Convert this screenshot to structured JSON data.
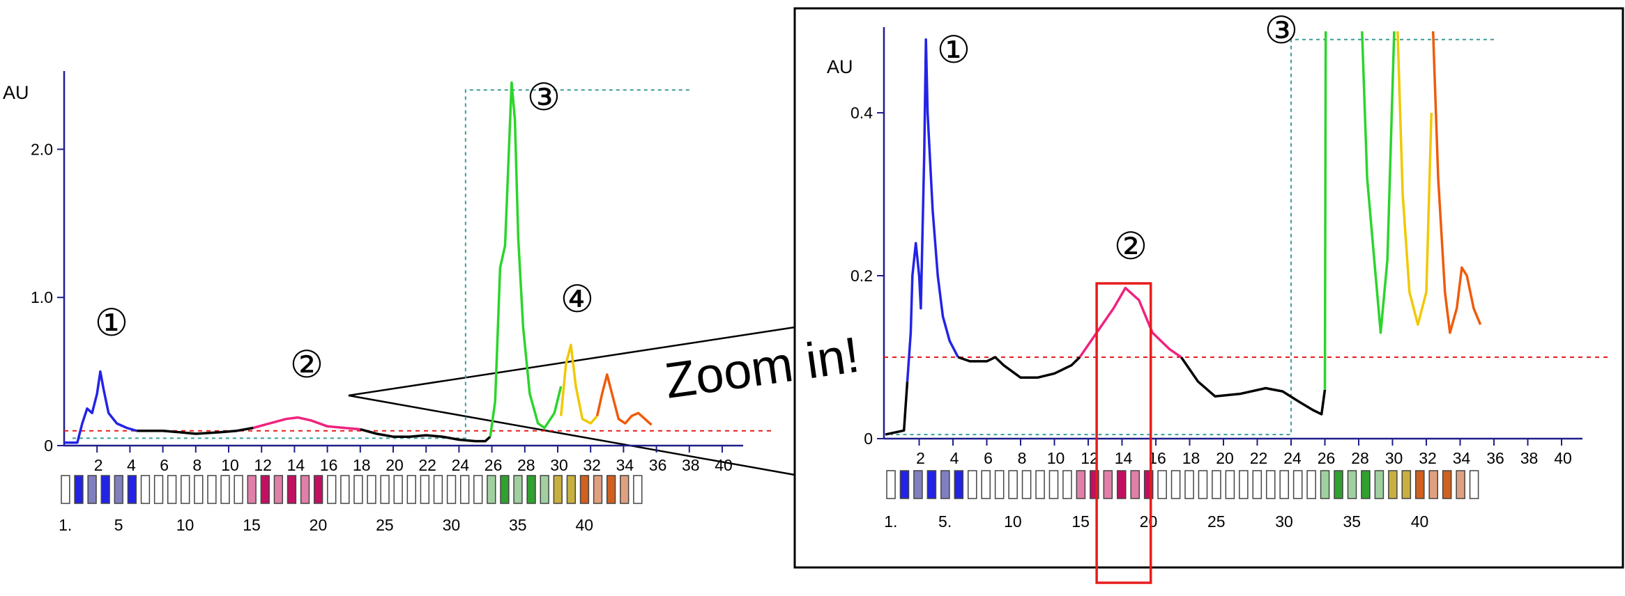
{
  "zoom_label": "Zoom in!",
  "colors": {
    "axis": "#1e1e8c",
    "threshold": "#e81c1c",
    "dotted_box": "#3c9c9c",
    "highlight_box": "#e81c1c",
    "peak1": "#2323e6",
    "peak2": "#f0237e",
    "peak3": "#2bd52b",
    "peak4_yellow": "#f0c800",
    "peak4_orange": "#f05a0a",
    "baseline": "#000000",
    "fraction_box": "#444444"
  },
  "chart_data": [
    {
      "type": "line",
      "panel": "overview",
      "ylabel": "AU",
      "xlabel": "",
      "ylim": [
        0,
        2.5
      ],
      "xlim": [
        0,
        40
      ],
      "y_ticks": [
        {
          "value": 0,
          "label": "0"
        },
        {
          "value": 1.0,
          "label": "1.0"
        },
        {
          "value": 2.0,
          "label": "2.0"
        }
      ],
      "x_ticks": [
        2,
        4,
        6,
        8,
        10,
        12,
        14,
        16,
        18,
        20,
        22,
        24,
        26,
        28,
        30,
        32,
        34,
        36,
        38,
        40
      ],
      "threshold": 0.1,
      "fraction_labels": [
        "1.",
        "5",
        "10",
        "15",
        "20",
        "25",
        "30",
        "35",
        "40"
      ],
      "callouts": [
        "①",
        "②",
        "③",
        "④"
      ],
      "series": [
        {
          "color": "peak1",
          "points": [
            [
              0,
              0.02
            ],
            [
              0.8,
              0.02
            ],
            [
              1.1,
              0.15
            ],
            [
              1.4,
              0.25
            ],
            [
              1.7,
              0.22
            ],
            [
              2.0,
              0.35
            ],
            [
              2.2,
              0.5
            ],
            [
              2.4,
              0.38
            ],
            [
              2.7,
              0.22
            ],
            [
              3.2,
              0.15
            ],
            [
              3.8,
              0.12
            ],
            [
              4.4,
              0.1
            ]
          ]
        },
        {
          "color": "baseline",
          "points": [
            [
              4.4,
              0.1
            ],
            [
              6,
              0.1
            ],
            [
              7,
              0.09
            ],
            [
              8,
              0.08
            ],
            [
              9.5,
              0.09
            ],
            [
              10.5,
              0.1
            ],
            [
              11.5,
              0.12
            ]
          ]
        },
        {
          "color": "peak2",
          "points": [
            [
              11.5,
              0.12
            ],
            [
              12.5,
              0.15
            ],
            [
              13.5,
              0.18
            ],
            [
              14.2,
              0.19
            ],
            [
              15,
              0.17
            ],
            [
              16,
              0.13
            ],
            [
              17,
              0.12
            ],
            [
              18,
              0.11
            ]
          ]
        },
        {
          "color": "baseline",
          "points": [
            [
              18,
              0.11
            ],
            [
              19,
              0.08
            ],
            [
              20,
              0.06
            ],
            [
              21,
              0.06
            ],
            [
              22,
              0.07
            ],
            [
              23,
              0.06
            ],
            [
              24,
              0.04
            ],
            [
              25,
              0.03
            ],
            [
              25.6,
              0.03
            ],
            [
              25.9,
              0.06
            ]
          ]
        },
        {
          "color": "peak3",
          "points": [
            [
              25.9,
              0.06
            ],
            [
              26.2,
              0.3
            ],
            [
              26.5,
              1.2
            ],
            [
              26.8,
              1.35
            ],
            [
              27.0,
              1.9
            ],
            [
              27.2,
              2.45
            ],
            [
              27.4,
              2.2
            ],
            [
              27.6,
              1.4
            ],
            [
              27.9,
              0.8
            ],
            [
              28.3,
              0.35
            ],
            [
              28.8,
              0.15
            ],
            [
              29.2,
              0.12
            ],
            [
              29.8,
              0.22
            ],
            [
              30.2,
              0.4
            ]
          ]
        },
        {
          "color": "peak4_yellow",
          "points": [
            [
              30.2,
              0.2
            ],
            [
              30.5,
              0.55
            ],
            [
              30.8,
              0.68
            ],
            [
              31.1,
              0.4
            ],
            [
              31.5,
              0.18
            ],
            [
              32.0,
              0.15
            ],
            [
              32.4,
              0.2
            ]
          ]
        },
        {
          "color": "peak4_orange",
          "points": [
            [
              32.4,
              0.2
            ],
            [
              32.7,
              0.35
            ],
            [
              33.0,
              0.48
            ],
            [
              33.3,
              0.35
            ],
            [
              33.7,
              0.18
            ],
            [
              34.1,
              0.15
            ],
            [
              34.5,
              0.2
            ],
            [
              34.9,
              0.22
            ],
            [
              35.3,
              0.18
            ],
            [
              35.7,
              0.14
            ]
          ]
        }
      ]
    },
    {
      "type": "line",
      "panel": "zoomed",
      "ylabel": "AU",
      "xlabel": "",
      "ylim": [
        0,
        0.5
      ],
      "xlim": [
        0,
        40
      ],
      "y_ticks": [
        {
          "value": 0,
          "label": "0"
        },
        {
          "value": 0.2,
          "label": "0.2"
        },
        {
          "value": 0.4,
          "label": "0.4"
        }
      ],
      "x_ticks": [
        2,
        4,
        6,
        8,
        10,
        12,
        14,
        16,
        18,
        20,
        22,
        24,
        26,
        28,
        30,
        32,
        34,
        36,
        38,
        40
      ],
      "threshold": 0.1,
      "highlighted_range": [
        12.5,
        15.7
      ],
      "fraction_labels": [
        "1.",
        "5.",
        "10",
        "15",
        "20",
        "25",
        "30",
        "35",
        "40"
      ],
      "callouts": [
        "①",
        "②",
        "③"
      ],
      "series": [
        {
          "color": "baseline",
          "points": [
            [
              0,
              0.005
            ],
            [
              1.1,
              0.01
            ],
            [
              1.3,
              0.07
            ]
          ]
        },
        {
          "color": "peak1",
          "points": [
            [
              1.3,
              0.07
            ],
            [
              1.5,
              0.13
            ],
            [
              1.6,
              0.2
            ],
            [
              1.8,
              0.24
            ],
            [
              2.0,
              0.2
            ],
            [
              2.1,
              0.16
            ],
            [
              2.3,
              0.35
            ],
            [
              2.4,
              0.49
            ],
            [
              2.5,
              0.4
            ],
            [
              2.8,
              0.28
            ],
            [
              3.1,
              0.2
            ],
            [
              3.4,
              0.15
            ],
            [
              3.8,
              0.12
            ],
            [
              4.3,
              0.1
            ]
          ]
        },
        {
          "color": "baseline",
          "points": [
            [
              4.3,
              0.1
            ],
            [
              5,
              0.095
            ],
            [
              6,
              0.095
            ],
            [
              6.5,
              0.1
            ],
            [
              7,
              0.09
            ],
            [
              8,
              0.075
            ],
            [
              9,
              0.075
            ],
            [
              10,
              0.08
            ],
            [
              11,
              0.09
            ],
            [
              11.5,
              0.1
            ]
          ]
        },
        {
          "color": "peak2",
          "points": [
            [
              11.5,
              0.1
            ],
            [
              12.5,
              0.13
            ],
            [
              13.5,
              0.16
            ],
            [
              14.2,
              0.185
            ],
            [
              15,
              0.17
            ],
            [
              15.8,
              0.13
            ],
            [
              16.8,
              0.11
            ],
            [
              17.5,
              0.1
            ]
          ]
        },
        {
          "color": "baseline",
          "points": [
            [
              17.5,
              0.1
            ],
            [
              18.5,
              0.07
            ],
            [
              19.5,
              0.052
            ],
            [
              21,
              0.055
            ],
            [
              22.5,
              0.062
            ],
            [
              23.5,
              0.058
            ],
            [
              24.5,
              0.045
            ],
            [
              25.3,
              0.035
            ],
            [
              25.8,
              0.03
            ],
            [
              26.0,
              0.06
            ]
          ]
        },
        {
          "color": "peak3",
          "points": [
            [
              26.0,
              0.06
            ],
            [
              26.05,
              0.5
            ]
          ]
        },
        {
          "color": "peak3",
          "points": [
            [
              28.2,
              0.5
            ],
            [
              28.5,
              0.32
            ],
            [
              29,
              0.2
            ],
            [
              29.3,
              0.13
            ],
            [
              29.7,
              0.22
            ],
            [
              30.1,
              0.5
            ]
          ]
        },
        {
          "color": "peak4_yellow",
          "points": [
            [
              30.3,
              0.5
            ],
            [
              30.6,
              0.3
            ],
            [
              31,
              0.18
            ],
            [
              31.5,
              0.14
            ],
            [
              32,
              0.18
            ],
            [
              32.3,
              0.4
            ]
          ]
        },
        {
          "color": "peak4_orange",
          "points": [
            [
              32.4,
              0.5
            ],
            [
              32.7,
              0.32
            ],
            [
              33.1,
              0.18
            ],
            [
              33.4,
              0.13
            ],
            [
              33.8,
              0.16
            ],
            [
              34.1,
              0.21
            ],
            [
              34.4,
              0.2
            ],
            [
              34.8,
              0.16
            ],
            [
              35.2,
              0.14
            ]
          ]
        }
      ]
    }
  ]
}
